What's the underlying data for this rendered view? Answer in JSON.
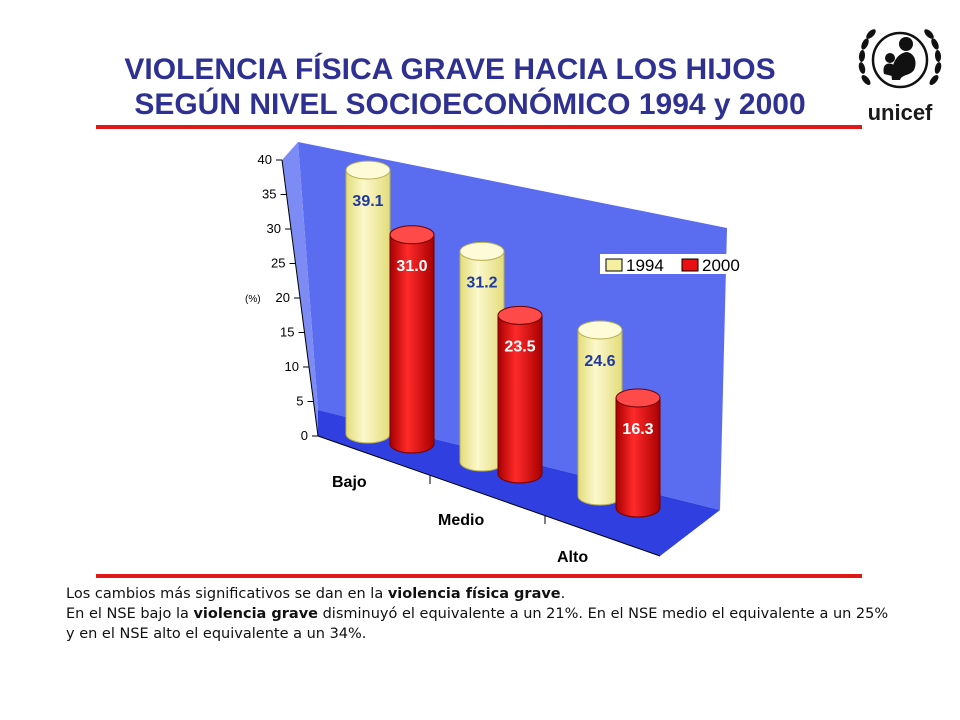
{
  "title": {
    "line1": "VIOLENCIA FÍSICA GRAVE HACIA LOS HIJOS",
    "line2": "SEGÚN NIVEL SOCIOECONÓMICO 1994 y 2000"
  },
  "logo": {
    "text": "unicef"
  },
  "chart_data": {
    "type": "bar",
    "style": "3d-cylinder",
    "categories": [
      "Bajo",
      "Medio",
      "Alto"
    ],
    "series": [
      {
        "name": "1994",
        "values": [
          39.1,
          31.2,
          24.6
        ],
        "value_labels": [
          "39.1",
          "31.2",
          "24.6"
        ],
        "color": "#f5f0a0",
        "label_color": "#1f3a9c"
      },
      {
        "name": "2000",
        "values": [
          31.0,
          23.5,
          16.3
        ],
        "value_labels": [
          "31.0",
          "23.5",
          "16.3"
        ],
        "color": "#e81010",
        "label_color": "#ffffff"
      }
    ],
    "ylabel": "(%)",
    "ylim": [
      0,
      40
    ],
    "yticks": [
      0,
      5,
      10,
      15,
      20,
      25,
      30,
      35,
      40
    ],
    "legend_position": "right",
    "back_wall_color": "#5a6cf0",
    "floor_color": "#3040e0"
  },
  "note": {
    "p1_a": "Los cambios más significativos se dan en la ",
    "p1_b": "violencia física grave",
    "p1_c": ".",
    "p2_a": "En el NSE bajo la ",
    "p2_b": "violencia grave",
    "p2_c": " disminuyó el equivalente a un 21%. En el NSE  medio el equivalente a un 25% y en el NSE alto el equivalente a un 34%."
  }
}
